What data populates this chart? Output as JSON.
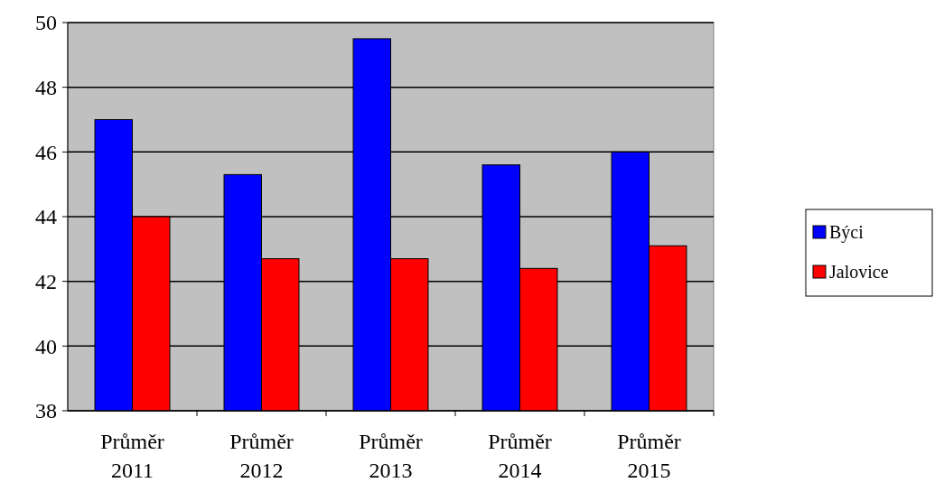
{
  "chart_data": {
    "type": "bar",
    "categories": [
      "Průměr 2011",
      "Průměr 2012",
      "Průměr 2013",
      "Průměr 2014",
      "Průměr 2015"
    ],
    "series": [
      {
        "name": "Býci",
        "color": "#0000ff",
        "values": [
          47.0,
          45.3,
          49.5,
          45.6,
          46.0
        ]
      },
      {
        "name": "Jalovice",
        "color": "#ff0000",
        "values": [
          44.0,
          42.7,
          42.7,
          42.4,
          43.1
        ]
      }
    ],
    "ylim": [
      38,
      50
    ],
    "yticks": [
      38,
      40,
      42,
      44,
      46,
      48,
      50
    ],
    "grid": "y",
    "legend": "right"
  }
}
